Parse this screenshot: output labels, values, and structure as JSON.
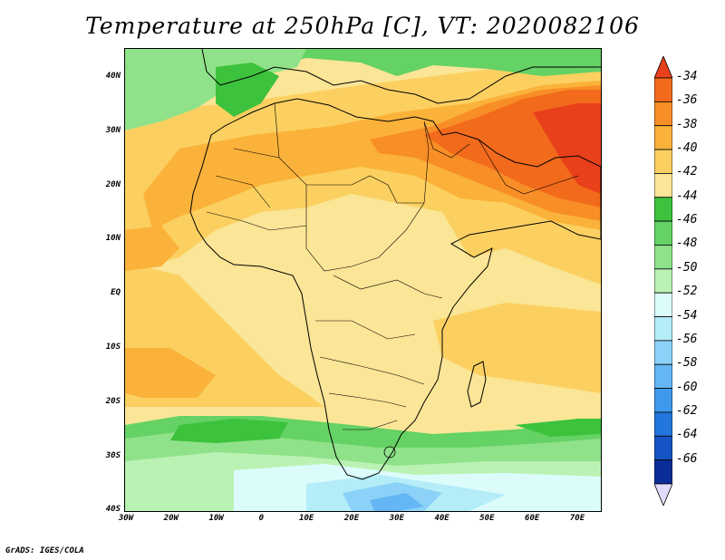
{
  "title": "Temperature at 250hPa [C], VT: 2020082106",
  "credit": "GrADS: IGES/COLA",
  "lat_labels": [
    "40N",
    "30N",
    "20N",
    "10N",
    "EQ",
    "10S",
    "20S",
    "30S",
    "40S"
  ],
  "lon_labels": [
    "30W",
    "20W",
    "10W",
    "0",
    "10E",
    "20E",
    "30E",
    "40E",
    "50E",
    "60E",
    "70E"
  ],
  "colorbar": {
    "labels": [
      "-34",
      "-36",
      "-38",
      "-40",
      "-42",
      "-44",
      "-46",
      "-48",
      "-50",
      "-52",
      "-54",
      "-56",
      "-58",
      "-60",
      "-62",
      "-64",
      "-66"
    ],
    "colors": [
      "#e8401a",
      "#f26a1c",
      "#f88e26",
      "#fbb23a",
      "#fbd060",
      "#fbe596",
      "#3cc23c",
      "#64d264",
      "#90e28a",
      "#baf2b4",
      "#dcfcfc",
      "#b4ecf8",
      "#8cd2f8",
      "#64b6f4",
      "#3e98ec",
      "#2276dc",
      "#1454c4",
      "#0a2c96",
      "#e0dcfc"
    ]
  }
}
